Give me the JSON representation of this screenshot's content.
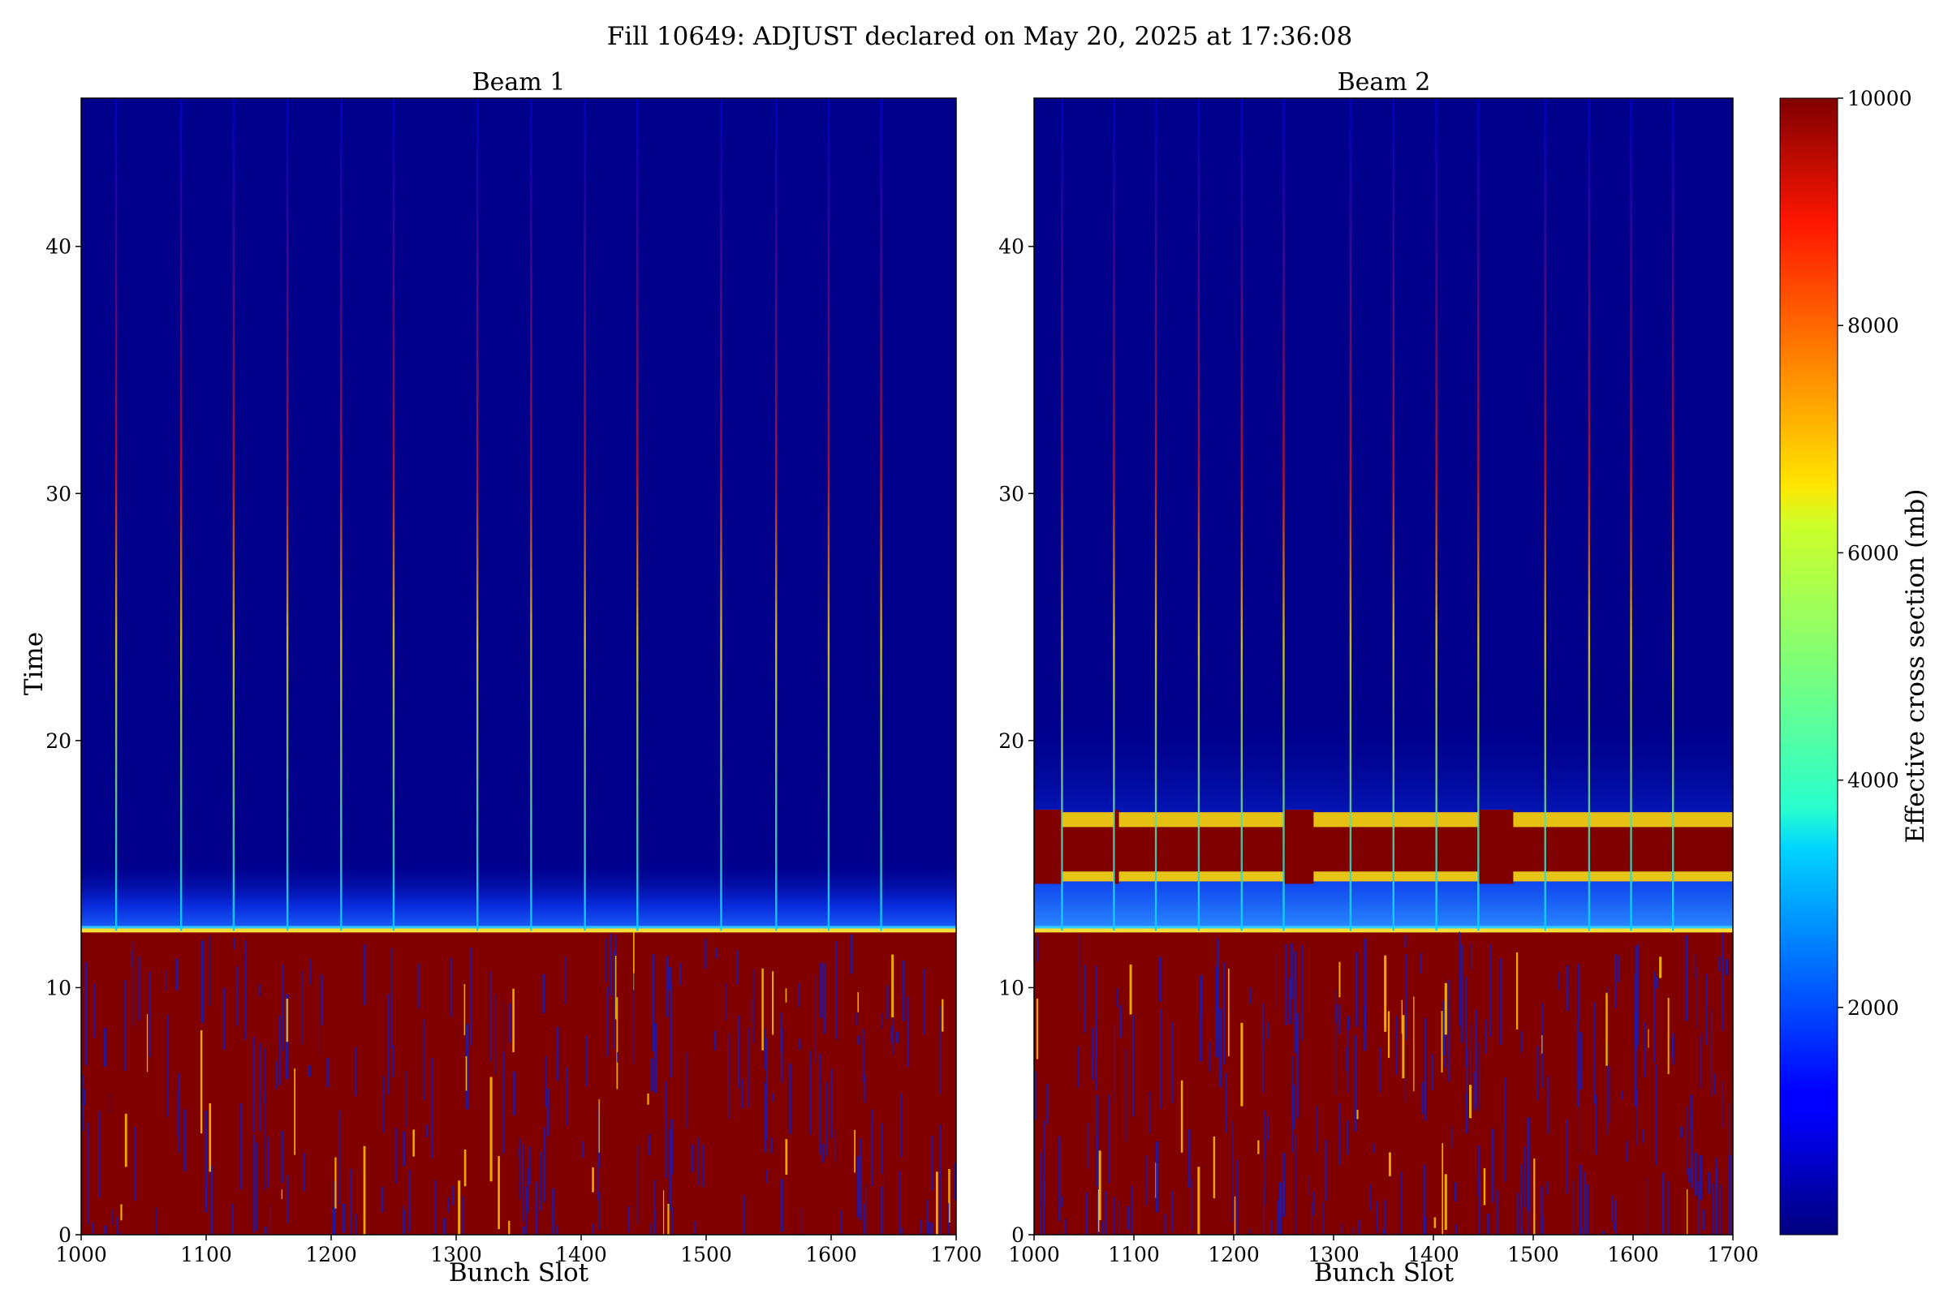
{
  "chart_data": {
    "type": "heatmap",
    "title": "Fill 10649: ADJUST declared on May 20, 2025 at 17:36:08",
    "colormap": "jet",
    "colorbar": {
      "label": "Effective cross section (mb)",
      "range": [
        0,
        10000
      ],
      "ticks": [
        "2000",
        "4000",
        "6000",
        "8000",
        "10000"
      ]
    },
    "shared_ylabel": "Time",
    "panels": [
      {
        "title": "Beam 1",
        "xlabel": "Bunch Slot",
        "xlim": [
          1000,
          1700
        ],
        "ylim": [
          0,
          46
        ],
        "xticks": [
          "1000",
          "1100",
          "1200",
          "1300",
          "1400",
          "1500",
          "1600",
          "1700"
        ],
        "yticks": [
          "0",
          "10",
          "20",
          "30",
          "40"
        ],
        "saturation_boundary_time": 12.3,
        "bright_stripe_slots": [
          1028,
          1080,
          1122,
          1165,
          1208,
          1250,
          1317,
          1360,
          1403,
          1445,
          1512,
          1556,
          1598,
          1640
        ]
      },
      {
        "title": "Beam 2",
        "xlabel": "Bunch Slot",
        "xlim": [
          1000,
          1700
        ],
        "ylim": [
          0,
          46
        ],
        "xticks": [
          "1000",
          "1100",
          "1200",
          "1300",
          "1400",
          "1500",
          "1600",
          "1700"
        ],
        "yticks": [
          "0",
          "10",
          "20",
          "30",
          "40"
        ],
        "saturation_boundary_time": 12.3,
        "hot_band_time": [
          14.7,
          16.5
        ],
        "bright_stripe_slots": [
          1028,
          1080,
          1122,
          1165,
          1208,
          1250,
          1317,
          1360,
          1403,
          1445,
          1512,
          1556,
          1598,
          1640
        ]
      }
    ]
  }
}
